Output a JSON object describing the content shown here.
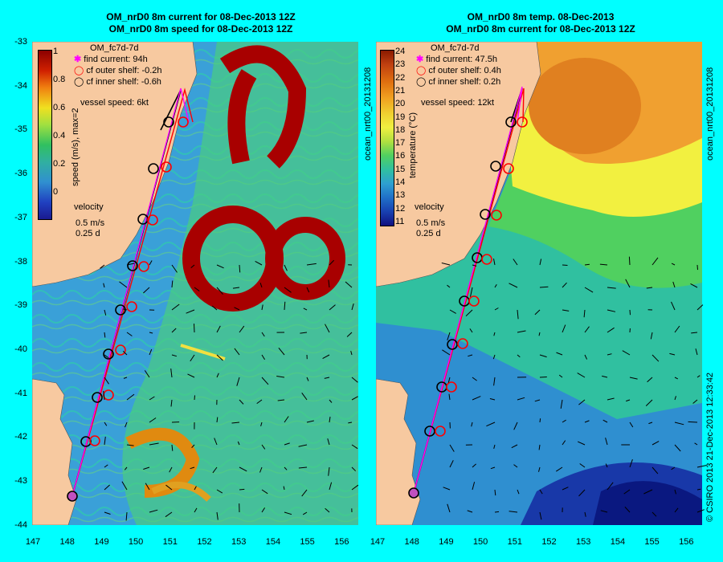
{
  "titles": {
    "left_line1": "OM_nrD0 8m current for 08-Dec-2013 12Z",
    "left_line2": "OM_nrD0 8m speed for 08-Dec-2013 12Z",
    "right_line1": "OM_nrD0 8m temp. 08-Dec-2013",
    "right_line2": "OM_nrD0 8m current for 08-Dec-2013 12Z"
  },
  "axes": {
    "lat_ticks": [
      "-33",
      "-34",
      "-35",
      "-36",
      "-37",
      "-38",
      "-39",
      "-40",
      "-41",
      "-42",
      "-43",
      "-44"
    ],
    "lon_ticks": [
      "147",
      "148",
      "149",
      "150",
      "151",
      "152",
      "153",
      "154",
      "155",
      "156"
    ]
  },
  "left_panel": {
    "model": "OM_fc7d-7d",
    "find_current": "find current: 94h",
    "cf_outer": "cf outer shelf: -0.2h",
    "cf_inner": "cf inner shelf: -0.6h",
    "vessel_speed": "vessel speed: 6kt",
    "colorbar_label": "speed (m/s), max=2",
    "colorbar_ticks": [
      "1",
      "0.8",
      "0.6",
      "0.4",
      "0.2",
      "0"
    ],
    "velocity_title": "velocity",
    "velocity_scale": "0.5 m/s",
    "velocity_time": "0.25 d"
  },
  "right_panel": {
    "model": "OM_fc7d-7d",
    "find_current": "find current: 47.5h",
    "cf_outer": "cf outer shelf: 0.4h",
    "cf_inner": "cf inner shelf: 0.2h",
    "vessel_speed": "vessel speed: 12kt",
    "colorbar_label": "temperature (°C)",
    "colorbar_ticks": [
      "24",
      "23",
      "22",
      "21",
      "20",
      "19",
      "18",
      "17",
      "16",
      "15",
      "14",
      "13",
      "12",
      "11"
    ],
    "velocity_title": "velocity",
    "velocity_scale": "0.5 m/s",
    "velocity_time": "0.25 d"
  },
  "side_labels": {
    "left_id": "ocean_nrt00_20131208",
    "right_id": "ocean_nrt00_20131208",
    "credit": "© CSIRO 2013   21-Dec-2013 12:33:42"
  },
  "colors": {
    "background": "#00ffff",
    "land": "#f7c9a0",
    "inner_track": "#000000",
    "outer_track": "#ff0000",
    "find_track": "#ff00ff"
  }
}
